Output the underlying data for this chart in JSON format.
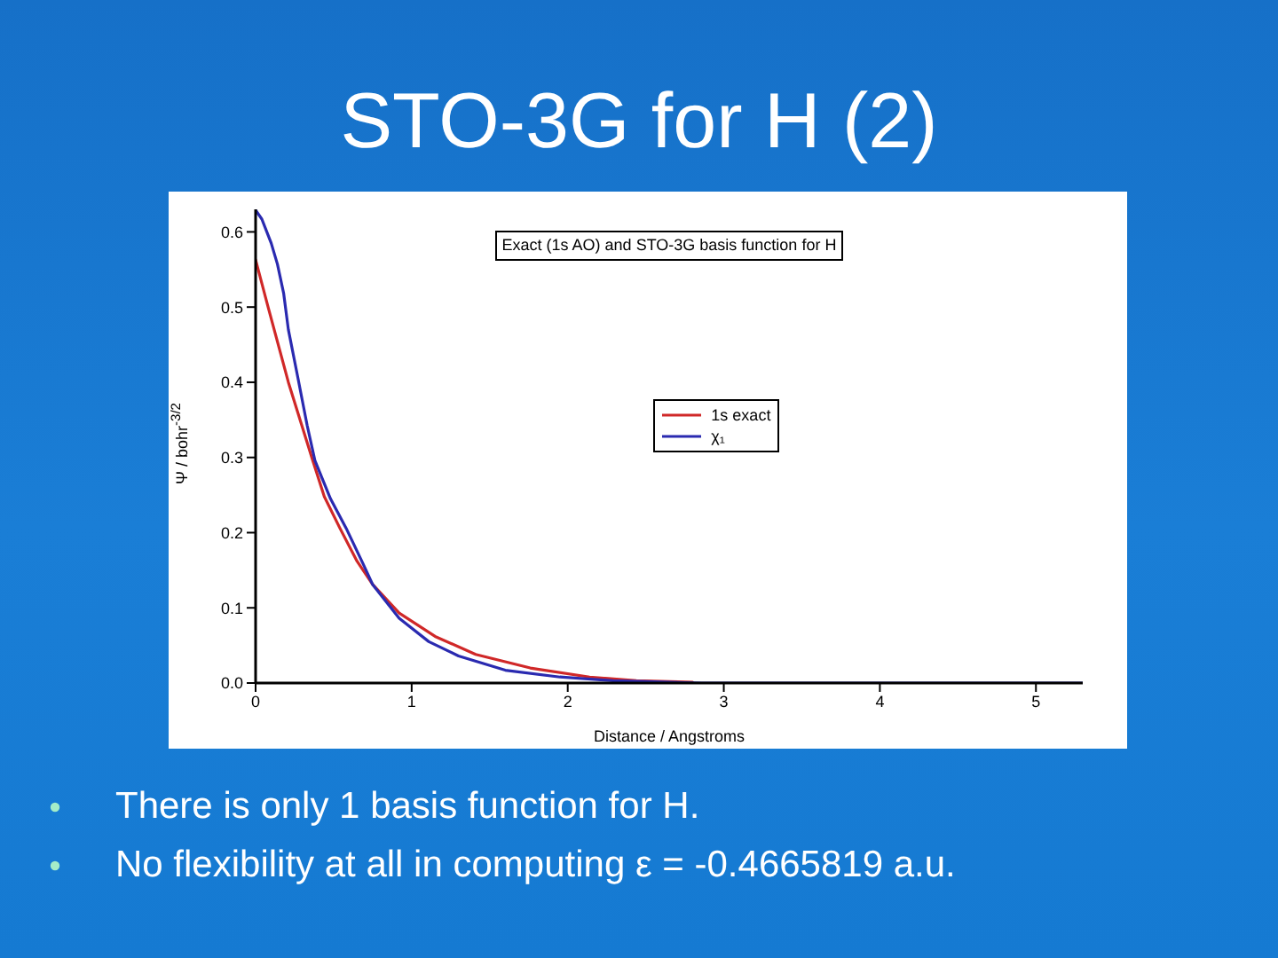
{
  "chart_data": {
    "type": "line",
    "title": "STO-3G for H (2)",
    "subtitle": "Exact (1s AO) and STO-3G basis function for H",
    "xlabel": "Distance / Angstroms",
    "ylabel": "Ψ / bohr$^{-3/2}$",
    "annotations": [
      "There is only 1 basis function for H.",
      "No flexibility at all in computing ε = -0.4665819 a.u."
    ],
    "series": [
      {
        "name": "1s exact",
        "color": "#d02828",
        "x": [
          0,
          0.08,
          0.21,
          0.36,
          0.44,
          0.54,
          0.65,
          0.75,
          0.92,
          1.15,
          1.41,
          1.76,
          2.14,
          2.44,
          2.8
        ],
        "values": [
          0.563,
          0.5,
          0.4,
          0.3,
          0.248,
          0.206,
          0.162,
          0.131,
          0.093,
          0.062,
          0.038,
          0.02,
          0.008,
          0.003,
          0.001
        ]
      },
      {
        "name": "χ₁",
        "color": "#2a2ab0",
        "x": [
          0,
          0.04,
          0.1,
          0.14,
          0.18,
          0.21,
          0.27,
          0.33,
          0.38,
          0.48,
          0.58,
          0.69,
          0.75,
          0.92,
          1.11,
          1.3,
          1.6,
          1.95,
          2.29,
          2.86,
          5.3
        ],
        "values": [
          0.629,
          0.617,
          0.585,
          0.557,
          0.518,
          0.47,
          0.407,
          0.343,
          0.296,
          0.245,
          0.206,
          0.158,
          0.131,
          0.086,
          0.055,
          0.036,
          0.017,
          0.008,
          0.003,
          0,
          0
        ]
      }
    ],
    "xlim": [
      0,
      5.3
    ],
    "xticks": [
      0,
      1,
      2,
      3,
      4,
      5
    ],
    "ylim": [
      0,
      0.63
    ],
    "yticks": [
      {
        "value": 0,
        "label": "0.0"
      },
      0.1,
      0.2,
      0.3,
      0.4,
      0.5,
      0.6
    ],
    "legend": "center"
  }
}
